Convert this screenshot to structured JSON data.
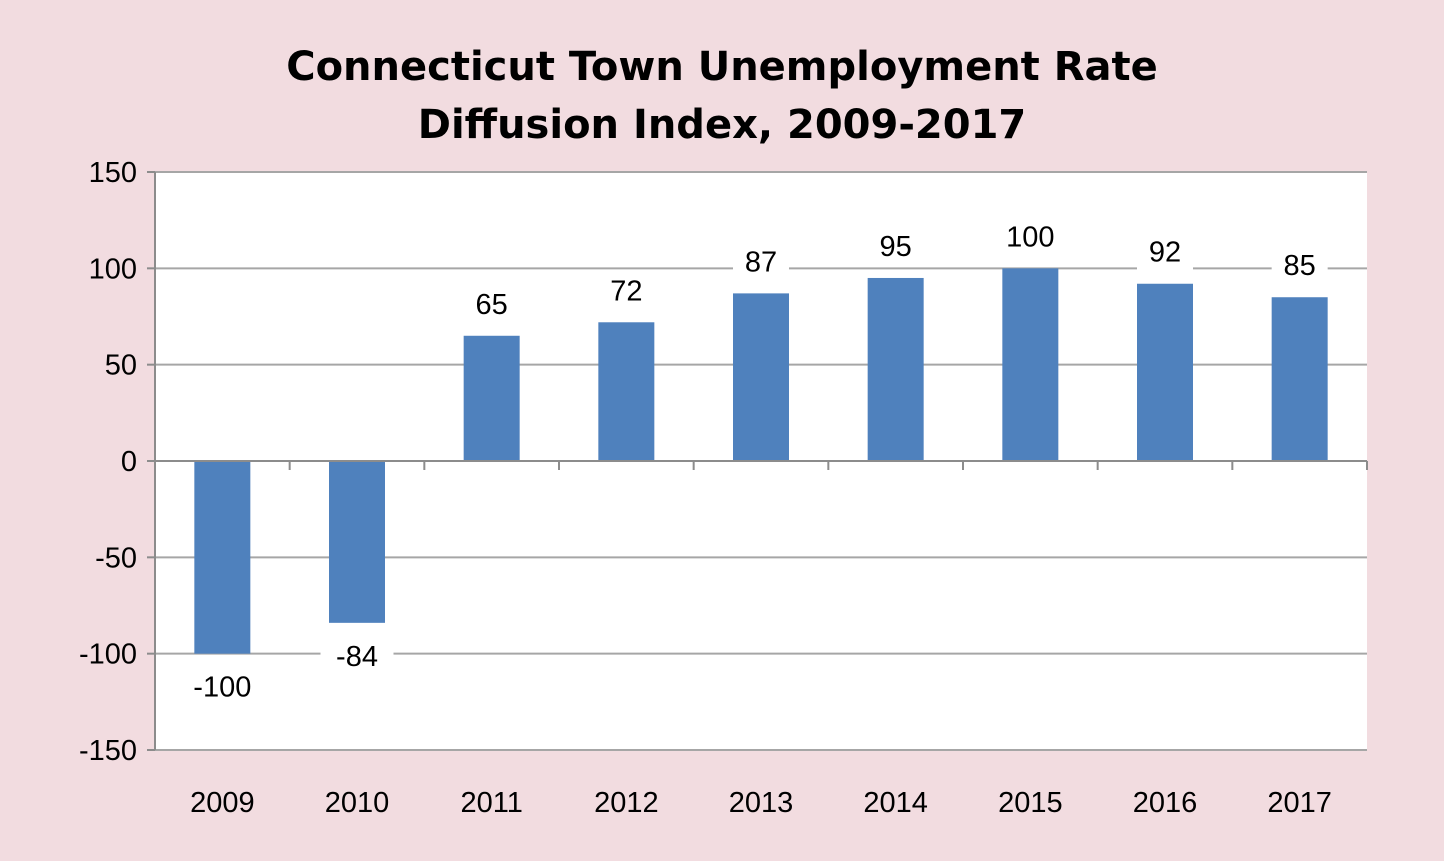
{
  "chart_data": {
    "type": "bar",
    "title_lines": [
      "Connecticut Town Unemployment Rate",
      "Diffusion Index, 2009-2017"
    ],
    "categories": [
      "2009",
      "2010",
      "2011",
      "2012",
      "2013",
      "2014",
      "2015",
      "2016",
      "2017"
    ],
    "values": [
      -100,
      -84,
      65,
      72,
      87,
      95,
      100,
      92,
      85
    ],
    "data_labels": [
      "-100",
      "-84",
      "65",
      "72",
      "87",
      "95",
      "100",
      "92",
      "85"
    ],
    "yticks": [
      150,
      100,
      50,
      0,
      -50,
      -100,
      -150
    ],
    "ytick_labels": [
      "150",
      "100",
      "50",
      "0",
      "-50",
      "-100",
      "-150"
    ],
    "ylim": [
      -150,
      150
    ],
    "xlabel": "",
    "ylabel": "",
    "grid": true,
    "legend": "none",
    "colors": {
      "bar": "#4f81bd",
      "background": "#f2dce0",
      "plot_area": "#ffffff",
      "gridline": "#a6a6a6",
      "axis": "#8c8c8c"
    }
  }
}
